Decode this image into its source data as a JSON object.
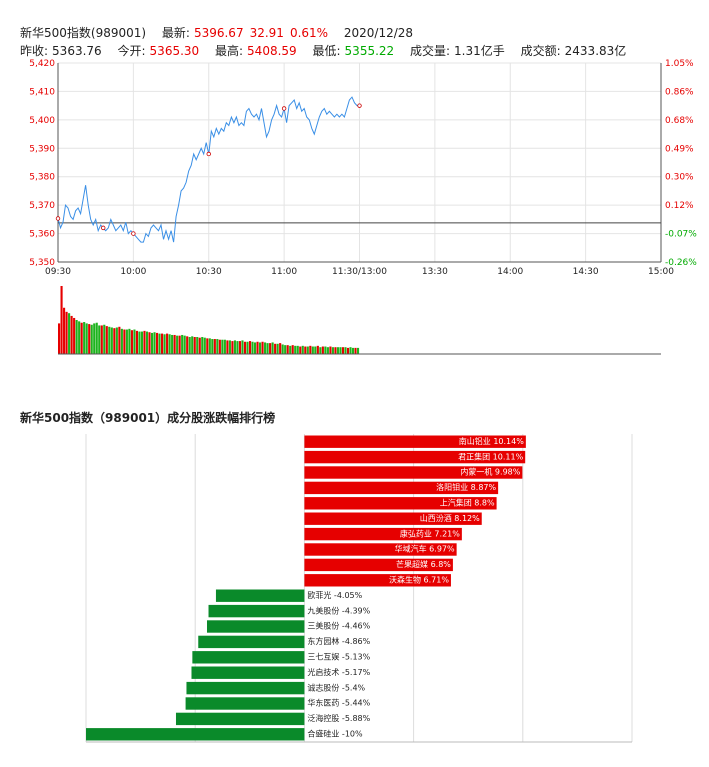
{
  "header": {
    "name_code": "新华500指数(989001)",
    "latest_label": "最新:",
    "latest_value": "5396.67",
    "change": "32.91",
    "change_pct": "0.61%",
    "date": "2020/12/28",
    "prev_close_label": "昨收:",
    "prev_close": "5363.76",
    "open_label": "今开:",
    "open": "5365.30",
    "high_label": "最高:",
    "high": "5408.59",
    "low_label": "最低:",
    "low": "5355.22",
    "volume_label": "成交量:",
    "volume": "1.31亿手",
    "turnover_label": "成交额:",
    "turnover": "2433.83亿"
  },
  "colors": {
    "up": "#e60000",
    "down": "#00aa00",
    "line": "#3a8fe6",
    "bar_up": "#e60000",
    "bar_down": "#1db31d"
  },
  "chart_data": [
    {
      "type": "line",
      "title": "",
      "prev_close": 5363.76,
      "ylim": [
        5350,
        5420
      ],
      "y_ticks": [
        "5,420",
        "5,410",
        "5,400",
        "5,390",
        "5,380",
        "5,370",
        "5,360",
        "5,350"
      ],
      "y_tick_values": [
        5420,
        5410,
        5400,
        5390,
        5380,
        5370,
        5360,
        5350
      ],
      "pct_ticks": [
        "1.05%",
        "0.86%",
        "0.68%",
        "0.49%",
        "0.30%",
        "0.12%",
        "-0.07%",
        "-0.26%"
      ],
      "x_ticks": [
        "09:30",
        "10:00",
        "10:30",
        "11:00",
        "11:30/13:00",
        "13:30",
        "14:00",
        "14:30",
        "15:00"
      ],
      "x_tick_minutes": [
        0,
        30,
        60,
        90,
        120,
        150,
        180,
        210,
        240
      ],
      "x_range_minutes": [
        0,
        240
      ],
      "series": [
        {
          "minutes": [
            0,
            1,
            2,
            3,
            4,
            5,
            6,
            7,
            8,
            9,
            10,
            11,
            12,
            13,
            14,
            15,
            16,
            17,
            18,
            19,
            20,
            21,
            22,
            23,
            24,
            25,
            26,
            27,
            28,
            29,
            30,
            31,
            32,
            33,
            34,
            35,
            36,
            37,
            38,
            39,
            40,
            41,
            42,
            43,
            44,
            45,
            46,
            47,
            48,
            49,
            50,
            51,
            52,
            53,
            54,
            55,
            56,
            57,
            58,
            59,
            60,
            61,
            62,
            63,
            64,
            65,
            66,
            67,
            68,
            69,
            70,
            71,
            72,
            73,
            74,
            75,
            76,
            77,
            78,
            79,
            80,
            81,
            82,
            83,
            84,
            85,
            86,
            87,
            88,
            89,
            90,
            91,
            92,
            93,
            94,
            95,
            96,
            97,
            98,
            99,
            100,
            101,
            102,
            103,
            104,
            105,
            106,
            107,
            108,
            109,
            110,
            111,
            112,
            113,
            114,
            115,
            116,
            117,
            118,
            119,
            120
          ],
          "values": [
            5365.3,
            5362,
            5364,
            5370,
            5369,
            5366,
            5365,
            5368,
            5369,
            5367,
            5372,
            5377,
            5370,
            5365,
            5363,
            5365,
            5361,
            5363,
            5362,
            5361,
            5362,
            5365,
            5363,
            5361,
            5362,
            5363,
            5361,
            5364,
            5360,
            5361,
            5360,
            5359,
            5358,
            5357,
            5357,
            5360,
            5359,
            5362,
            5363,
            5362,
            5361,
            5363,
            5358,
            5361,
            5358,
            5361,
            5357,
            5366,
            5370,
            5375,
            5376,
            5378,
            5382,
            5384,
            5388,
            5386,
            5388,
            5390,
            5388,
            5392,
            5388,
            5396,
            5394,
            5397,
            5395,
            5397,
            5396,
            5399,
            5398,
            5401,
            5399,
            5401,
            5398,
            5399,
            5398,
            5403,
            5404,
            5402,
            5401,
            5402,
            5400,
            5404,
            5399,
            5394,
            5396,
            5400,
            5402,
            5405,
            5402,
            5401,
            5404,
            5399,
            5405,
            5406,
            5407,
            5404,
            5406,
            5403,
            5404,
            5401,
            5400,
            5397,
            5395,
            5398,
            5401,
            5403,
            5404,
            5402,
            5403,
            5402,
            5401,
            5402,
            5401,
            5402,
            5401,
            5404,
            5407,
            5408,
            5406,
            5405,
            5405
          ],
          "marked_minutes": [
            0,
            18,
            30,
            60,
            90,
            120
          ]
        }
      ]
    },
    {
      "type": "bar",
      "title": "",
      "x_range_minutes": [
        0,
        240
      ],
      "ylim": [
        0,
        100
      ],
      "values": [
        45,
        100,
        68,
        62,
        60,
        56,
        53,
        50,
        48,
        46,
        47,
        45,
        44,
        43,
        45,
        46,
        42,
        42,
        43,
        41,
        40,
        39,
        38,
        39,
        40,
        37,
        36,
        36,
        37,
        35,
        36,
        34,
        33,
        33,
        34,
        33,
        32,
        31,
        32,
        31,
        30,
        30,
        29,
        30,
        29,
        28,
        28,
        27,
        27,
        28,
        27,
        26,
        25,
        26,
        25,
        25,
        24,
        25,
        24,
        23,
        23,
        22,
        22,
        22,
        21,
        21,
        21,
        20,
        20,
        19,
        20,
        19,
        19,
        20,
        18,
        18,
        19,
        18,
        17,
        18,
        17,
        18,
        17,
        16,
        16,
        17,
        15,
        15,
        16,
        14,
        13,
        13,
        12,
        13,
        12,
        12,
        11,
        12,
        11,
        11,
        12,
        11,
        11,
        12,
        10,
        11,
        11,
        10,
        11,
        10,
        10,
        10,
        10,
        10,
        10,
        9,
        10,
        9,
        9,
        9
      ],
      "up": [
        1,
        1,
        1,
        1,
        0,
        1,
        1,
        0,
        0,
        1,
        0,
        0,
        1,
        0,
        0,
        0,
        0,
        1,
        0,
        1,
        0,
        0,
        1,
        0,
        1,
        0,
        1,
        0,
        0,
        1,
        0,
        1,
        0,
        0,
        1,
        0,
        1,
        0,
        0,
        1,
        0,
        1,
        0,
        1,
        0,
        0,
        1,
        0,
        1,
        0,
        0,
        1,
        0,
        0,
        1,
        0,
        1,
        0,
        0,
        1,
        0,
        0,
        1,
        0,
        1,
        0,
        0,
        1,
        0,
        1,
        0,
        0,
        1,
        0,
        1,
        0,
        1,
        0,
        0,
        1,
        0,
        1,
        0,
        0,
        1,
        0,
        1,
        0,
        1,
        0,
        0,
        1,
        0,
        1,
        0,
        0,
        1,
        0,
        1,
        0,
        1,
        0,
        0,
        1,
        0,
        1,
        0,
        0,
        1,
        0,
        1,
        0,
        0,
        1,
        0,
        1,
        0,
        0,
        1,
        0
      ]
    },
    {
      "type": "bar",
      "title": "新华500指数（989001）成分股涨跌幅排行榜",
      "xlim": [
        -10,
        15
      ],
      "categories": [
        "南山铝业",
        "君正集团",
        "内蒙一机",
        "洛阳钼业",
        "上汽集团",
        "山西汾酒",
        "康弘药业",
        "华域汽车",
        "芒果超媒",
        "沃森生物",
        "欧菲光",
        "九美股份",
        "三美股份",
        "东方园林",
        "三七互娱",
        "光启技术",
        "诚志股份",
        "华东医药",
        "泛海控股",
        "合盛硅业"
      ],
      "values": [
        10.14,
        10.11,
        9.98,
        8.87,
        8.8,
        8.12,
        7.21,
        6.97,
        6.8,
        6.71,
        -4.05,
        -4.39,
        -4.46,
        -4.86,
        -5.13,
        -5.17,
        -5.4,
        -5.44,
        -5.88,
        -10
      ],
      "labels": [
        "南山铝业 10.14%",
        "君正集团 10.11%",
        "内蒙一机 9.98%",
        "洛阳钼业 8.87%",
        "上汽集团 8.8%",
        "山西汾酒 8.12%",
        "康弘药业 7.21%",
        "华域汽车 6.97%",
        "芒果超媒 6.8%",
        "沃森生物 6.71%",
        "欧菲光 -4.05%",
        "九美股份 -4.39%",
        "三美股份 -4.46%",
        "东方园林 -4.86%",
        "三七互娱 -5.13%",
        "光启技术 -5.17%",
        "诚志股份 -5.4%",
        "华东医药 -5.44%",
        "泛海控股 -5.88%",
        "合盛硅业 -10%"
      ],
      "grid": true
    }
  ]
}
